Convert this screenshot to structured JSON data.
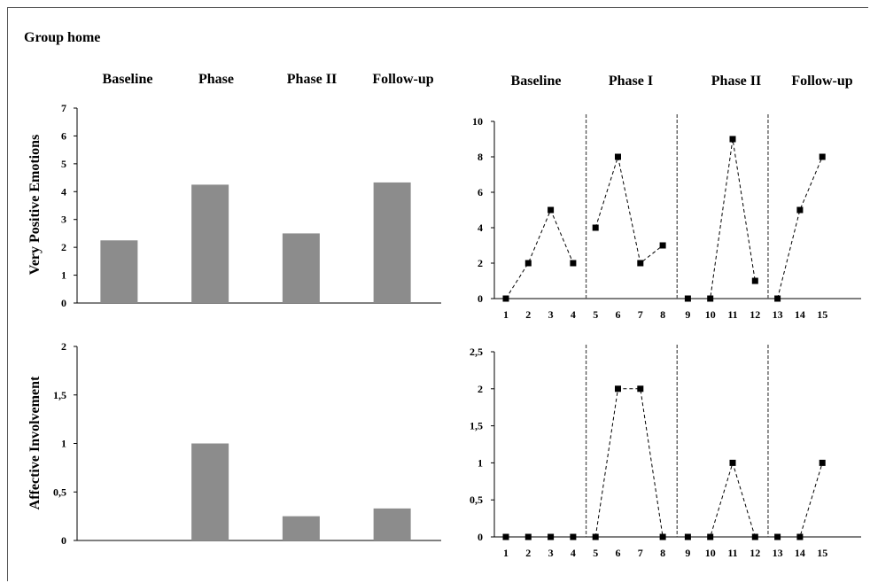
{
  "title": "Group home",
  "left_phase_labels": [
    "Baseline",
    "Phase",
    "Phase II",
    "Follow-up"
  ],
  "right_phase_labels": [
    "Baseline",
    "Phase I",
    "Phase II",
    "Follow-up"
  ],
  "styles": {
    "bar_color": "#8c8c8c",
    "line_color": "#000000",
    "axis_color": "#000000",
    "divider_color": "#555555"
  },
  "chart_data": [
    {
      "type": "bar",
      "ylabel": "Very Positive Emotions",
      "categories": [
        "Baseline",
        "Phase",
        "Phase II",
        "Follow-up"
      ],
      "values": [
        2.25,
        4.25,
        2.5,
        4.33
      ],
      "ylim": [
        0,
        7
      ],
      "yticks": [
        0,
        1,
        2,
        3,
        4,
        5,
        6,
        7
      ],
      "ytick_labels": [
        "0",
        "1",
        "2",
        "3",
        "4",
        "5",
        "6",
        "7"
      ]
    },
    {
      "type": "line",
      "x": [
        1,
        2,
        3,
        4,
        5,
        6,
        7,
        8,
        9,
        10,
        11,
        12,
        13,
        14,
        15
      ],
      "series": [
        {
          "values": [
            0,
            2,
            5,
            2,
            4,
            8,
            2,
            3,
            0,
            0,
            9,
            1,
            0,
            5,
            8
          ]
        }
      ],
      "segments": [
        [
          1,
          4
        ],
        [
          5,
          8
        ],
        [
          9,
          12
        ],
        [
          13,
          15
        ]
      ],
      "ylim": [
        0,
        10
      ],
      "yticks": [
        0,
        2,
        4,
        6,
        8,
        10
      ],
      "ytick_labels": [
        "0",
        "2",
        "4",
        "6",
        "8",
        "10"
      ],
      "xtick_labels": [
        "1",
        "2",
        "3",
        "4",
        "5",
        "6",
        "7",
        "8",
        "9",
        "10",
        "11",
        "12",
        "13",
        "14",
        "15"
      ],
      "phase_dividers_after": [
        4,
        8,
        12
      ]
    },
    {
      "type": "bar",
      "ylabel": "Affective  Involvement",
      "categories": [
        "Baseline",
        "Phase",
        "Phase II",
        "Follow-up"
      ],
      "values": [
        0,
        1,
        0.25,
        0.33
      ],
      "ylim": [
        0,
        2
      ],
      "yticks": [
        0,
        0.5,
        1,
        1.5,
        2
      ],
      "ytick_labels": [
        "0",
        "0,5",
        "1",
        "1,5",
        "2"
      ]
    },
    {
      "type": "line",
      "x": [
        1,
        2,
        3,
        4,
        5,
        6,
        7,
        8,
        9,
        10,
        11,
        12,
        13,
        14,
        15
      ],
      "series": [
        {
          "values": [
            0,
            0,
            0,
            0,
            0,
            2,
            2,
            0,
            0,
            0,
            1,
            0,
            0,
            0,
            1
          ]
        }
      ],
      "segments": [
        [
          1,
          4
        ],
        [
          5,
          8
        ],
        [
          9,
          12
        ],
        [
          13,
          15
        ]
      ],
      "ylim": [
        0,
        2.5
      ],
      "yticks": [
        0,
        0.5,
        1,
        1.5,
        2,
        2.5
      ],
      "ytick_labels": [
        "0",
        "0,5",
        "1",
        "1,5",
        "2",
        "2,5"
      ],
      "xtick_labels": [
        "1",
        "2",
        "3",
        "4",
        "5",
        "6",
        "7",
        "8",
        "9",
        "10",
        "11",
        "12",
        "13",
        "14",
        "15"
      ],
      "phase_dividers_after": [
        4,
        8,
        12
      ]
    }
  ]
}
